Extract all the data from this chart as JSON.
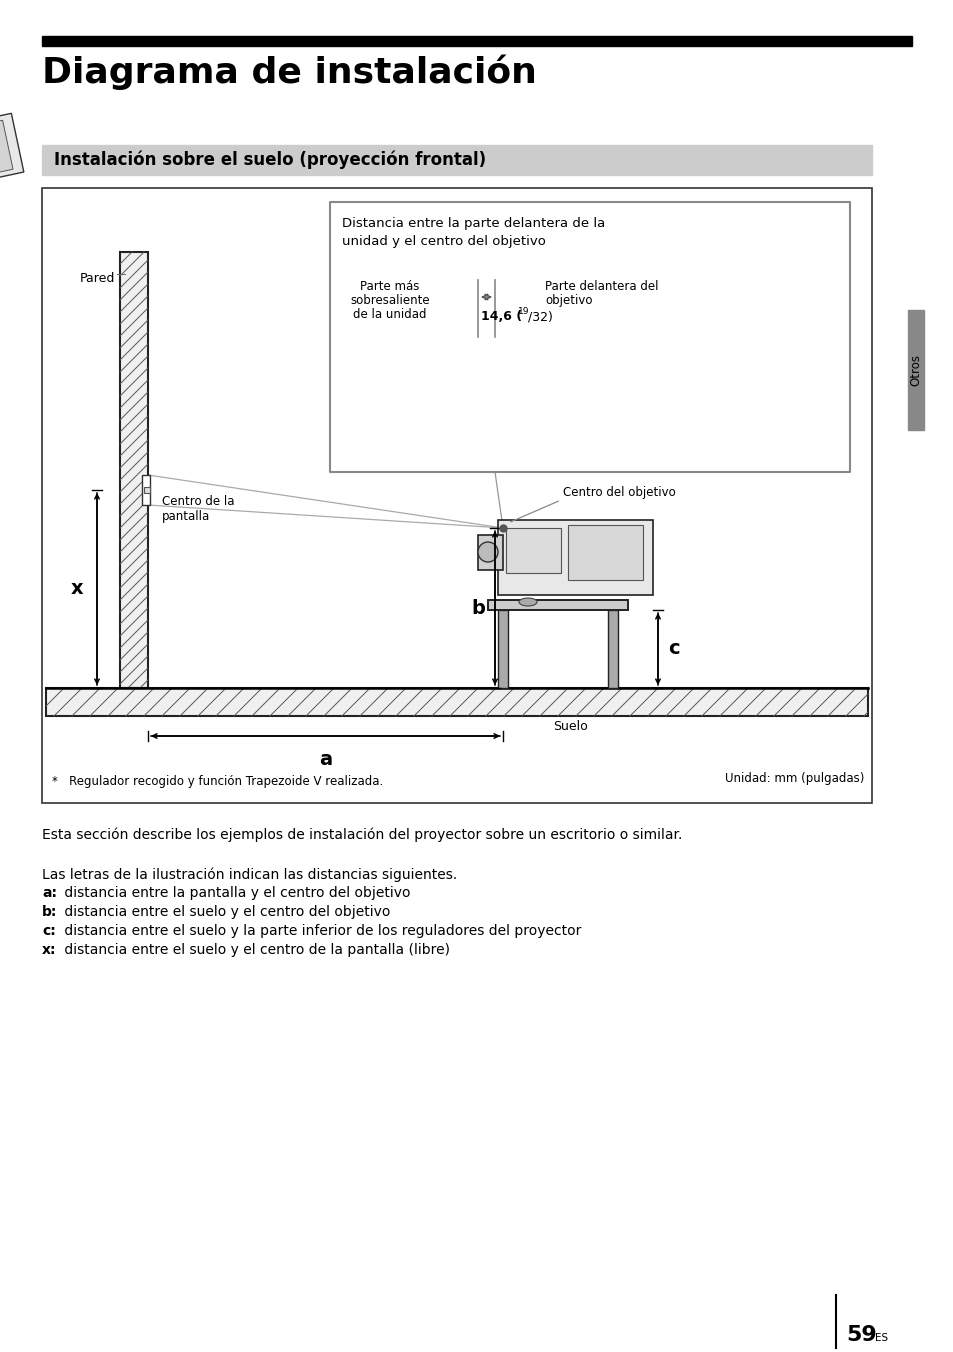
{
  "title": "Diagrama de instalación",
  "subtitle": "Instalación sobre el suelo (proyección frontal)",
  "page_bg": "#ffffff",
  "top_bar_color": "#000000",
  "subtitle_bg": "#cccccc",
  "diagram_border": "#000000",
  "diagram_bg": "#ffffff",
  "otros_label": "Otros",
  "side_bar_color": "#888888",
  "description1": "Esta sección describe los ejemplos de instalación del proyector sobre un escritorio o similar.",
  "description2": "Las letras de la ilustración indican las distancias siguientes.",
  "label_a": "a:",
  "label_a_text": " distancia entre la pantalla y el centro del objetivo",
  "label_b": "b:",
  "label_b_text": " distancia entre el suelo y el centro del objetivo",
  "label_c": "c:",
  "label_c_text": " distancia entre el suelo y la parte inferior de los reguladores del proyector",
  "label_x": "x:",
  "label_x_text": " distancia entre el suelo y el centro de la pantalla (libre)",
  "footnote": "*   Regulador recogido y función Trapezoide V realizada.",
  "unit_label": "Unidad: mm (pulgadas)",
  "page_number": "59",
  "page_suffix": "ES",
  "inset_title1": "Distancia entre la parte delantera de la",
  "inset_title2": "unidad y el centro del objetivo",
  "inset_label1a": "Parte más",
  "inset_label1b": "sobresaliente",
  "inset_label1c": "de la unidad",
  "inset_label2a": "Parte delantera del",
  "inset_label2b": "objetivo",
  "inset_meas": "14,6 (",
  "inset_meas_sup": "19",
  "inset_meas_end": "/32)",
  "pared_label": "Pared",
  "centro_pantalla1": "Centro de la",
  "centro_pantalla2": "pantalla",
  "centro_objetivo": "Centro del objetivo",
  "suelo_label": "Suelo",
  "dim_a": "a",
  "dim_b": "b",
  "dim_c": "c",
  "dim_x": "x"
}
